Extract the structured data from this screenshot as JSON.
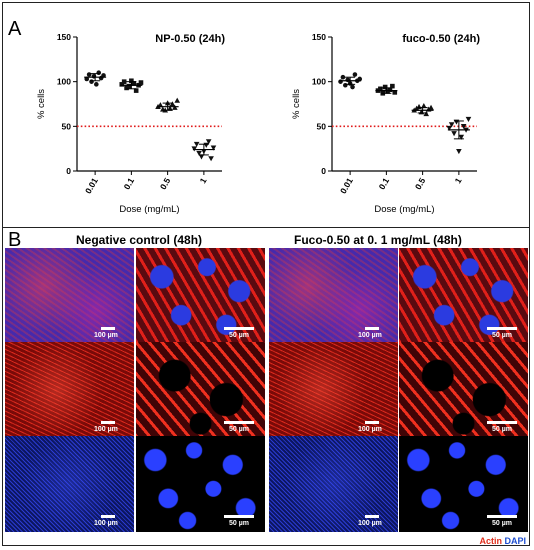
{
  "panel_a_label": "A",
  "panel_b_label": "B",
  "chart_data": [
    {
      "type": "scatter",
      "title": "NP-0.50 (24h)",
      "xlabel": "Dose (mg/mL)",
      "ylabel": "% cells",
      "categories": [
        "0.01",
        "0.1",
        "0.5",
        "1"
      ],
      "yticks": [
        0,
        50,
        100,
        150
      ],
      "ylim": [
        0,
        150
      ],
      "reference_line": 50,
      "series": [
        {
          "values": [
            103,
            108,
            100,
            106,
            97,
            110,
            104,
            107
          ]
        },
        {
          "values": [
            97,
            100,
            93,
            95,
            101,
            98,
            90,
            96,
            99
          ]
        },
        {
          "values": [
            72,
            74,
            69,
            68,
            76,
            70,
            75,
            71,
            79
          ]
        },
        {
          "values": [
            25,
            30,
            20,
            16,
            22,
            29,
            33,
            14,
            26
          ]
        }
      ],
      "means": [
        105,
        96,
        72,
        24
      ],
      "errors": [
        4,
        4,
        4,
        6
      ]
    },
    {
      "type": "scatter",
      "title": "fuco-0.50 (24h)",
      "xlabel": "Dose (mg/mL)",
      "ylabel": "% cells",
      "categories": [
        "0.01",
        "0.1",
        "0.5",
        "1"
      ],
      "yticks": [
        0,
        50,
        100,
        150
      ],
      "ylim": [
        0,
        150
      ],
      "reference_line": 50,
      "series": [
        {
          "values": [
            100,
            105,
            96,
            102,
            98,
            94,
            108,
            101,
            103
          ]
        },
        {
          "values": [
            90,
            92,
            87,
            94,
            89,
            91,
            95,
            88
          ]
        },
        {
          "values": [
            68,
            70,
            72,
            66,
            73,
            64,
            69,
            71
          ]
        },
        {
          "values": [
            48,
            52,
            42,
            55,
            22,
            38,
            50,
            46,
            58
          ]
        }
      ],
      "means": [
        101,
        90,
        68,
        46
      ],
      "errors": [
        4,
        3,
        3,
        10
      ]
    }
  ],
  "panel_b": {
    "left_title": "Negative control (48h)",
    "right_title": "Fuco-0.50 at 0. 1 mg/mL (48h)",
    "scale_low": "100 µm",
    "scale_high": "50 µm",
    "legend_actin": "Actin",
    "legend_dapi": "DAPI",
    "actin_color": "#e0301e",
    "dapi_color": "#1f4fd0"
  }
}
